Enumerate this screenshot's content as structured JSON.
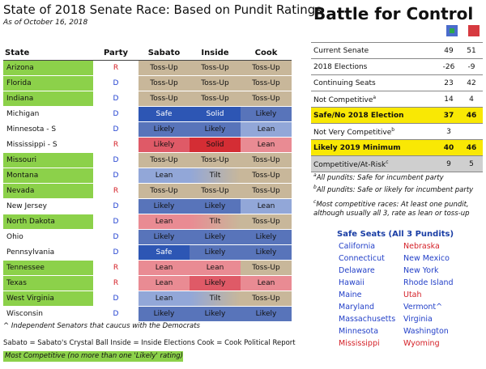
{
  "title": "State of 2018 Senate Race: Based on Pundit Ratings",
  "as_of": "As of October 16, 2018",
  "columns": [
    "State",
    "Party",
    "Sabato",
    "Inside",
    "Cook"
  ],
  "rows": [
    {
      "state": "Arizona",
      "party": "R",
      "comp": true,
      "ratings": [
        [
          "Toss-Up",
          "tossup"
        ],
        [
          "Toss-Up",
          "tossup"
        ],
        [
          "Toss-Up",
          "tossup"
        ]
      ]
    },
    {
      "state": "Florida",
      "party": "D",
      "comp": true,
      "ratings": [
        [
          "Toss-Up",
          "tossup"
        ],
        [
          "Toss-Up",
          "tossup"
        ],
        [
          "Toss-Up",
          "tossup"
        ]
      ]
    },
    {
      "state": "Indiana",
      "party": "D",
      "comp": true,
      "ratings": [
        [
          "Toss-Up",
          "tossup"
        ],
        [
          "Toss-Up",
          "tossup"
        ],
        [
          "Toss-Up",
          "tossup"
        ]
      ]
    },
    {
      "state": "Michigan",
      "party": "D",
      "comp": false,
      "ratings": [
        [
          "Safe",
          "safe-d"
        ],
        [
          "Solid",
          "solid-d"
        ],
        [
          "Likely",
          "likely-d"
        ]
      ]
    },
    {
      "state": "Minnesota - S",
      "party": "D",
      "comp": false,
      "ratings": [
        [
          "Likely",
          "likely-d"
        ],
        [
          "Likely",
          "likely-d"
        ],
        [
          "Lean",
          "lean-d"
        ]
      ]
    },
    {
      "state": "Mississippi - S",
      "party": "R",
      "comp": false,
      "ratings": [
        [
          "Likely",
          "likely-r"
        ],
        [
          "Solid",
          "solid-r"
        ],
        [
          "Lean",
          "lean-r"
        ]
      ]
    },
    {
      "state": "Missouri",
      "party": "D",
      "comp": true,
      "ratings": [
        [
          "Toss-Up",
          "tossup"
        ],
        [
          "Toss-Up",
          "tossup"
        ],
        [
          "Toss-Up",
          "tossup"
        ]
      ]
    },
    {
      "state": "Montana",
      "party": "D",
      "comp": true,
      "ratings": [
        [
          "Lean",
          "lean-d"
        ],
        [
          "Tilt",
          "tilt-d"
        ],
        [
          "Toss-Up",
          "tossup"
        ]
      ]
    },
    {
      "state": "Nevada",
      "party": "R",
      "comp": true,
      "ratings": [
        [
          "Toss-Up",
          "tossup"
        ],
        [
          "Toss-Up",
          "tossup"
        ],
        [
          "Toss-Up",
          "tossup"
        ]
      ]
    },
    {
      "state": "New Jersey",
      "party": "D",
      "comp": false,
      "ratings": [
        [
          "Likely",
          "likely-d"
        ],
        [
          "Likely",
          "likely-d"
        ],
        [
          "Lean",
          "lean-d"
        ]
      ]
    },
    {
      "state": "North Dakota",
      "party": "D",
      "comp": true,
      "ratings": [
        [
          "Lean",
          "lean-r"
        ],
        [
          "Tilt",
          "tilt-r"
        ],
        [
          "Toss-Up",
          "tossup"
        ]
      ]
    },
    {
      "state": "Ohio",
      "party": "D",
      "comp": false,
      "ratings": [
        [
          "Likely",
          "likely-d"
        ],
        [
          "Likely",
          "likely-d"
        ],
        [
          "Likely",
          "likely-d"
        ]
      ]
    },
    {
      "state": "Pennsylvania",
      "party": "D",
      "comp": false,
      "ratings": [
        [
          "Safe",
          "safe-d"
        ],
        [
          "Likely",
          "likely-d"
        ],
        [
          "Likely",
          "likely-d"
        ]
      ]
    },
    {
      "state": "Tennessee",
      "party": "R",
      "comp": true,
      "ratings": [
        [
          "Lean",
          "lean-r"
        ],
        [
          "Lean",
          "lean-r"
        ],
        [
          "Toss-Up",
          "tossup"
        ]
      ]
    },
    {
      "state": "Texas",
      "party": "R",
      "comp": true,
      "ratings": [
        [
          "Lean",
          "lean-r"
        ],
        [
          "Likely",
          "likely-r"
        ],
        [
          "Lean",
          "lean-r"
        ]
      ]
    },
    {
      "state": "West Virginia",
      "party": "D",
      "comp": true,
      "ratings": [
        [
          "Lean",
          "lean-d"
        ],
        [
          "Tilt",
          "tilt-d"
        ],
        [
          "Toss-Up",
          "tossup"
        ]
      ]
    },
    {
      "state": "Wisconsin",
      "party": "D",
      "comp": false,
      "ratings": [
        [
          "Likely",
          "likely-d"
        ],
        [
          "Likely",
          "likely-d"
        ],
        [
          "Likely",
          "likely-d"
        ]
      ]
    }
  ],
  "footnote_independent": "^ Independent Senators that caucus with the Democrats",
  "footnote_sources": "Sabato = Sabato's Crystal Ball   Inside = Inside Elections   Cook = Cook Political Report",
  "legend_most_competitive": "Most Competitive (no more than one 'Likely' rating)",
  "battle": {
    "title": "Battle for Control",
    "dem_color": "#4a6ccc",
    "rep_color": "#d63a40",
    "rows": [
      {
        "label": "Current Senate",
        "sup": "",
        "d": "49",
        "r": "51",
        "style": ""
      },
      {
        "label": "2018 Elections",
        "sup": "",
        "d": "-26",
        "r": "-9",
        "style": ""
      },
      {
        "label": "Continuing Seats",
        "sup": "",
        "d": "23",
        "r": "42",
        "style": ""
      },
      {
        "label": "Not Competitive",
        "sup": "a",
        "d": "14",
        "r": "4",
        "style": ""
      },
      {
        "label": "Safe/No 2018 Election",
        "sup": "",
        "d": "37",
        "r": "46",
        "style": "hl"
      },
      {
        "label": "Not Very Competitive",
        "sup": "b",
        "d": "3",
        "r": "",
        "style": ""
      },
      {
        "label": "Likely 2019 Minimum",
        "sup": "",
        "d": "40",
        "r": "46",
        "style": "hl"
      },
      {
        "label": "Competitive/At-Risk",
        "sup": "c",
        "d": "9",
        "r": "5",
        "style": "gray"
      }
    ],
    "notes": [
      {
        "sup": "a",
        "text": "All pundits: Safe for incumbent party"
      },
      {
        "sup": "b",
        "text": "All pundits: Safe or likely for incumbent party"
      },
      {
        "sup": "c",
        "text": "Most competitive races: At least one pundit,"
      },
      {
        "sup": "",
        "text": "although usually all 3, rate as lean or toss-up"
      }
    ]
  },
  "safe_seats": {
    "title": "Safe Seats (All 3 Pundits)",
    "col1": [
      {
        "name": "California",
        "party": "D"
      },
      {
        "name": "Connecticut",
        "party": "D"
      },
      {
        "name": "Delaware",
        "party": "D"
      },
      {
        "name": "Hawaii",
        "party": "D"
      },
      {
        "name": "Maine",
        "party": "D"
      },
      {
        "name": "Maryland",
        "party": "D"
      },
      {
        "name": "Massachusetts",
        "party": "D"
      },
      {
        "name": "Minnesota",
        "party": "D"
      },
      {
        "name": "Mississippi",
        "party": "R"
      }
    ],
    "col2": [
      {
        "name": "Nebraska",
        "party": "R"
      },
      {
        "name": "New Mexico",
        "party": "D"
      },
      {
        "name": "New York",
        "party": "D"
      },
      {
        "name": "Rhode Island",
        "party": "D"
      },
      {
        "name": "Utah",
        "party": "R"
      },
      {
        "name": "Vermont^",
        "party": "D"
      },
      {
        "name": "Virginia",
        "party": "D"
      },
      {
        "name": "Washington",
        "party": "D"
      },
      {
        "name": "Wyoming",
        "party": "R"
      }
    ]
  }
}
